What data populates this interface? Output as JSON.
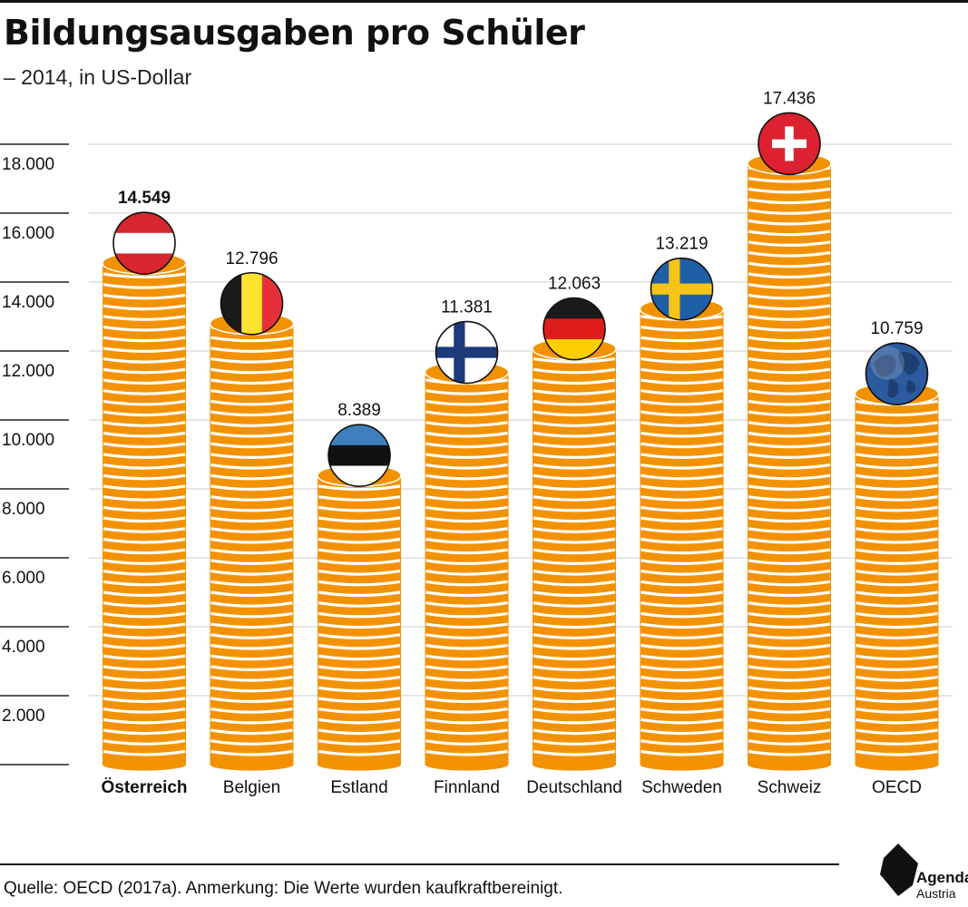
{
  "header": {
    "title": "Bildungsausgaben pro Schüler",
    "subtitle": "– 2014, in US-Dollar"
  },
  "chart_data": {
    "type": "bar",
    "title": "Bildungsausgaben pro Schüler",
    "subtitle": "– 2014, in US-Dollar",
    "categories": [
      "Österreich",
      "Belgien",
      "Estland",
      "Finnland",
      "Deutschland",
      "Schweden",
      "Schweiz",
      "OECD"
    ],
    "values": [
      14549,
      12796,
      8389,
      11381,
      12063,
      13219,
      17436,
      10759
    ],
    "value_labels": [
      "14.549",
      "12.796",
      "8.389",
      "11.381",
      "12.063",
      "13.219",
      "17.436",
      "10.759"
    ],
    "highlight_category": "Österreich",
    "ylim": [
      0,
      18000
    ],
    "yticks": [
      2000,
      4000,
      6000,
      8000,
      10000,
      12000,
      14000,
      16000,
      18000
    ],
    "ytick_labels": [
      "2.000",
      "4.000",
      "6.000",
      "8.000",
      "10.000",
      "12.000",
      "14.000",
      "16.000",
      "18.000"
    ],
    "xlabel": "",
    "ylabel": "",
    "grid": true,
    "legend": "none",
    "bar_style": "coin-stack",
    "bar_color": "#F39200",
    "bar_stripe_color": "#FFFFFF",
    "markers": [
      "flag-austria-icon",
      "flag-belgium-icon",
      "flag-estonia-icon",
      "flag-finland-icon",
      "flag-germany-icon",
      "flag-sweden-icon",
      "flag-switzerland-icon",
      "globe-icon"
    ]
  },
  "footer": {
    "source": "Quelle: OECD (2017a). Anmerkung: Die Werte wurden kaufkraftbereinigt.",
    "logo_line1": "Agenda",
    "logo_line2": "Austria"
  }
}
